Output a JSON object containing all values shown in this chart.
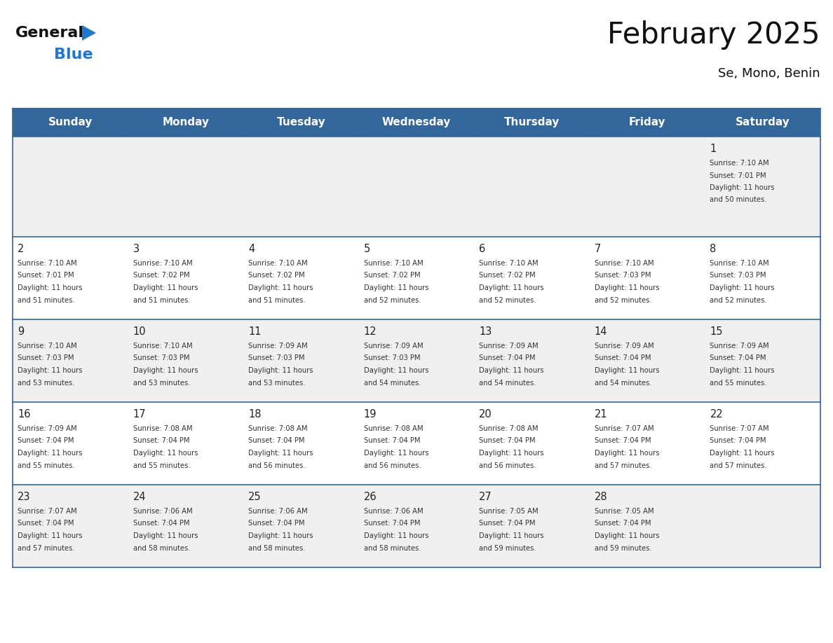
{
  "title": "February 2025",
  "subtitle": "Se, Mono, Benin",
  "days_of_week": [
    "Sunday",
    "Monday",
    "Tuesday",
    "Wednesday",
    "Thursday",
    "Friday",
    "Saturday"
  ],
  "header_bg": "#336699",
  "header_text": "#ffffff",
  "cell_bg_odd": "#f0f0f0",
  "cell_bg_even": "#ffffff",
  "row_line_color": "#336699",
  "day_number_color": "#222222",
  "info_text_color": "#333333",
  "title_color": "#111111",
  "subtitle_color": "#111111",
  "logo_general_color": "#111111",
  "logo_blue_color": "#2277cc",
  "background_color": "#ffffff",
  "calendar_data": [
    [
      null,
      null,
      null,
      null,
      null,
      null,
      {
        "day": "1",
        "sunrise": "7:10 AM",
        "sunset": "7:01 PM",
        "daylight": "11 hours and 50 minutes."
      }
    ],
    [
      {
        "day": "2",
        "sunrise": "7:10 AM",
        "sunset": "7:01 PM",
        "daylight": "11 hours and 51 minutes."
      },
      {
        "day": "3",
        "sunrise": "7:10 AM",
        "sunset": "7:02 PM",
        "daylight": "11 hours and 51 minutes."
      },
      {
        "day": "4",
        "sunrise": "7:10 AM",
        "sunset": "7:02 PM",
        "daylight": "11 hours and 51 minutes."
      },
      {
        "day": "5",
        "sunrise": "7:10 AM",
        "sunset": "7:02 PM",
        "daylight": "11 hours and 52 minutes."
      },
      {
        "day": "6",
        "sunrise": "7:10 AM",
        "sunset": "7:02 PM",
        "daylight": "11 hours and 52 minutes."
      },
      {
        "day": "7",
        "sunrise": "7:10 AM",
        "sunset": "7:03 PM",
        "daylight": "11 hours and 52 minutes."
      },
      {
        "day": "8",
        "sunrise": "7:10 AM",
        "sunset": "7:03 PM",
        "daylight": "11 hours and 52 minutes."
      }
    ],
    [
      {
        "day": "9",
        "sunrise": "7:10 AM",
        "sunset": "7:03 PM",
        "daylight": "11 hours and 53 minutes."
      },
      {
        "day": "10",
        "sunrise": "7:10 AM",
        "sunset": "7:03 PM",
        "daylight": "11 hours and 53 minutes."
      },
      {
        "day": "11",
        "sunrise": "7:09 AM",
        "sunset": "7:03 PM",
        "daylight": "11 hours and 53 minutes."
      },
      {
        "day": "12",
        "sunrise": "7:09 AM",
        "sunset": "7:03 PM",
        "daylight": "11 hours and 54 minutes."
      },
      {
        "day": "13",
        "sunrise": "7:09 AM",
        "sunset": "7:04 PM",
        "daylight": "11 hours and 54 minutes."
      },
      {
        "day": "14",
        "sunrise": "7:09 AM",
        "sunset": "7:04 PM",
        "daylight": "11 hours and 54 minutes."
      },
      {
        "day": "15",
        "sunrise": "7:09 AM",
        "sunset": "7:04 PM",
        "daylight": "11 hours and 55 minutes."
      }
    ],
    [
      {
        "day": "16",
        "sunrise": "7:09 AM",
        "sunset": "7:04 PM",
        "daylight": "11 hours and 55 minutes."
      },
      {
        "day": "17",
        "sunrise": "7:08 AM",
        "sunset": "7:04 PM",
        "daylight": "11 hours and 55 minutes."
      },
      {
        "day": "18",
        "sunrise": "7:08 AM",
        "sunset": "7:04 PM",
        "daylight": "11 hours and 56 minutes."
      },
      {
        "day": "19",
        "sunrise": "7:08 AM",
        "sunset": "7:04 PM",
        "daylight": "11 hours and 56 minutes."
      },
      {
        "day": "20",
        "sunrise": "7:08 AM",
        "sunset": "7:04 PM",
        "daylight": "11 hours and 56 minutes."
      },
      {
        "day": "21",
        "sunrise": "7:07 AM",
        "sunset": "7:04 PM",
        "daylight": "11 hours and 57 minutes."
      },
      {
        "day": "22",
        "sunrise": "7:07 AM",
        "sunset": "7:04 PM",
        "daylight": "11 hours and 57 minutes."
      }
    ],
    [
      {
        "day": "23",
        "sunrise": "7:07 AM",
        "sunset": "7:04 PM",
        "daylight": "11 hours and 57 minutes."
      },
      {
        "day": "24",
        "sunrise": "7:06 AM",
        "sunset": "7:04 PM",
        "daylight": "11 hours and 58 minutes."
      },
      {
        "day": "25",
        "sunrise": "7:06 AM",
        "sunset": "7:04 PM",
        "daylight": "11 hours and 58 minutes."
      },
      {
        "day": "26",
        "sunrise": "7:06 AM",
        "sunset": "7:04 PM",
        "daylight": "11 hours and 58 minutes."
      },
      {
        "day": "27",
        "sunrise": "7:05 AM",
        "sunset": "7:04 PM",
        "daylight": "11 hours and 59 minutes."
      },
      {
        "day": "28",
        "sunrise": "7:05 AM",
        "sunset": "7:04 PM",
        "daylight": "11 hours and 59 minutes."
      },
      null
    ]
  ]
}
